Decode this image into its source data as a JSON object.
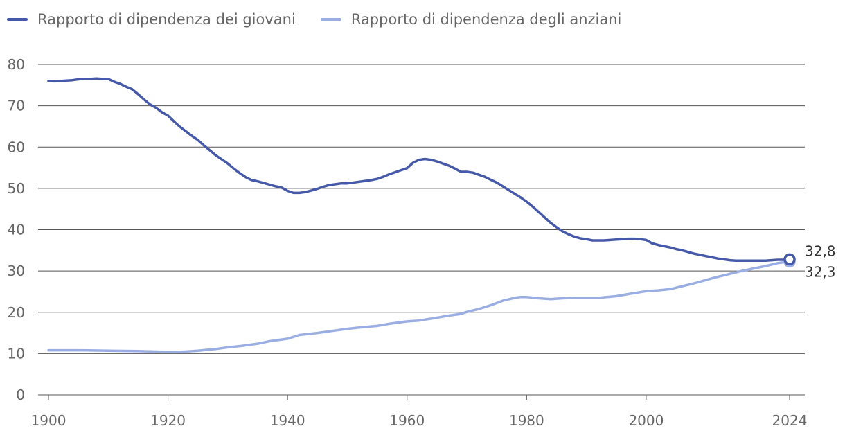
{
  "legend": {
    "young_label": "Rapporto di dipendenza dei giovani",
    "old_label": "Rapporto di dipendenza degli anziani"
  },
  "colors": {
    "young": "#4659a8",
    "old": "#9aaee3",
    "grid": "#555555",
    "axis_text": "#666666"
  },
  "chart_data": {
    "type": "line",
    "title": "",
    "xlabel": "",
    "ylabel": "",
    "xlim": [
      1900,
      2024
    ],
    "ylim": [
      0,
      80
    ],
    "x_ticks": [
      1900,
      1920,
      1940,
      1960,
      1980,
      2000,
      2024
    ],
    "y_ticks": [
      0,
      10,
      20,
      30,
      40,
      50,
      60,
      70,
      80
    ],
    "grid": true,
    "legend_position": "top-left",
    "series": [
      {
        "name": "Rapporto di dipendenza dei giovani",
        "color": "#4659a8",
        "points": [
          [
            1900,
            76.0
          ],
          [
            1901,
            75.9
          ],
          [
            1902,
            76.0
          ],
          [
            1903,
            76.1
          ],
          [
            1904,
            76.2
          ],
          [
            1905,
            76.4
          ],
          [
            1906,
            76.5
          ],
          [
            1907,
            76.5
          ],
          [
            1908,
            76.6
          ],
          [
            1909,
            76.5
          ],
          [
            1910,
            76.5
          ],
          [
            1911,
            75.8
          ],
          [
            1912,
            75.3
          ],
          [
            1913,
            74.6
          ],
          [
            1914,
            74.0
          ],
          [
            1915,
            72.8
          ],
          [
            1916,
            71.5
          ],
          [
            1917,
            70.3
          ],
          [
            1918,
            69.5
          ],
          [
            1919,
            68.4
          ],
          [
            1920,
            67.6
          ],
          [
            1921,
            66.2
          ],
          [
            1922,
            64.9
          ],
          [
            1923,
            63.8
          ],
          [
            1924,
            62.7
          ],
          [
            1925,
            61.7
          ],
          [
            1926,
            60.4
          ],
          [
            1927,
            59.2
          ],
          [
            1928,
            58.0
          ],
          [
            1929,
            57.0
          ],
          [
            1930,
            56.0
          ],
          [
            1931,
            54.8
          ],
          [
            1932,
            53.7
          ],
          [
            1933,
            52.7
          ],
          [
            1934,
            52.0
          ],
          [
            1935,
            51.7
          ],
          [
            1936,
            51.3
          ],
          [
            1937,
            50.9
          ],
          [
            1938,
            50.5
          ],
          [
            1939,
            50.2
          ],
          [
            1940,
            49.4
          ],
          [
            1941,
            48.9
          ],
          [
            1942,
            48.9
          ],
          [
            1943,
            49.1
          ],
          [
            1944,
            49.5
          ],
          [
            1945,
            49.9
          ],
          [
            1946,
            50.4
          ],
          [
            1947,
            50.8
          ],
          [
            1948,
            51.0
          ],
          [
            1949,
            51.2
          ],
          [
            1950,
            51.2
          ],
          [
            1951,
            51.4
          ],
          [
            1952,
            51.6
          ],
          [
            1953,
            51.8
          ],
          [
            1954,
            52.0
          ],
          [
            1955,
            52.3
          ],
          [
            1956,
            52.8
          ],
          [
            1957,
            53.4
          ],
          [
            1958,
            53.9
          ],
          [
            1959,
            54.4
          ],
          [
            1960,
            54.9
          ],
          [
            1961,
            56.2
          ],
          [
            1962,
            56.9
          ],
          [
            1963,
            57.1
          ],
          [
            1964,
            56.9
          ],
          [
            1965,
            56.5
          ],
          [
            1966,
            56.0
          ],
          [
            1967,
            55.5
          ],
          [
            1968,
            54.8
          ],
          [
            1969,
            54.0
          ],
          [
            1970,
            54.0
          ],
          [
            1971,
            53.8
          ],
          [
            1972,
            53.3
          ],
          [
            1973,
            52.8
          ],
          [
            1974,
            52.1
          ],
          [
            1975,
            51.4
          ],
          [
            1976,
            50.5
          ],
          [
            1977,
            49.6
          ],
          [
            1978,
            48.7
          ],
          [
            1979,
            47.8
          ],
          [
            1980,
            46.8
          ],
          [
            1981,
            45.6
          ],
          [
            1982,
            44.3
          ],
          [
            1983,
            43.0
          ],
          [
            1984,
            41.7
          ],
          [
            1985,
            40.6
          ],
          [
            1986,
            39.6
          ],
          [
            1987,
            38.9
          ],
          [
            1988,
            38.3
          ],
          [
            1989,
            37.9
          ],
          [
            1990,
            37.7
          ],
          [
            1991,
            37.4
          ],
          [
            1992,
            37.4
          ],
          [
            1993,
            37.4
          ],
          [
            1994,
            37.5
          ],
          [
            1995,
            37.6
          ],
          [
            1996,
            37.7
          ],
          [
            1997,
            37.8
          ],
          [
            1998,
            37.8
          ],
          [
            1999,
            37.7
          ],
          [
            2000,
            37.5
          ],
          [
            2001,
            36.7
          ],
          [
            2002,
            36.3
          ],
          [
            2003,
            36.0
          ],
          [
            2004,
            35.7
          ],
          [
            2005,
            35.3
          ],
          [
            2006,
            35.0
          ],
          [
            2007,
            34.6
          ],
          [
            2008,
            34.2
          ],
          [
            2009,
            33.9
          ],
          [
            2010,
            33.6
          ],
          [
            2011,
            33.3
          ],
          [
            2012,
            33.0
          ],
          [
            2013,
            32.8
          ],
          [
            2014,
            32.6
          ],
          [
            2015,
            32.5
          ],
          [
            2016,
            32.5
          ],
          [
            2017,
            32.5
          ],
          [
            2018,
            32.5
          ],
          [
            2019,
            32.5
          ],
          [
            2020,
            32.5
          ],
          [
            2021,
            32.6
          ],
          [
            2022,
            32.7
          ],
          [
            2023,
            32.7
          ],
          [
            2024,
            32.8
          ]
        ],
        "end_label": "32,8"
      },
      {
        "name": "Rapporto di dipendenza degli anziani",
        "color": "#9aaee3",
        "points": [
          [
            1900,
            10.8
          ],
          [
            1905,
            10.8
          ],
          [
            1910,
            10.7
          ],
          [
            1915,
            10.6
          ],
          [
            1920,
            10.4
          ],
          [
            1922,
            10.4
          ],
          [
            1925,
            10.7
          ],
          [
            1928,
            11.1
          ],
          [
            1930,
            11.5
          ],
          [
            1932,
            11.8
          ],
          [
            1935,
            12.4
          ],
          [
            1937,
            13.0
          ],
          [
            1940,
            13.6
          ],
          [
            1942,
            14.5
          ],
          [
            1945,
            15.0
          ],
          [
            1947,
            15.4
          ],
          [
            1950,
            16.0
          ],
          [
            1952,
            16.3
          ],
          [
            1955,
            16.7
          ],
          [
            1957,
            17.2
          ],
          [
            1960,
            17.8
          ],
          [
            1962,
            18.0
          ],
          [
            1965,
            18.7
          ],
          [
            1967,
            19.2
          ],
          [
            1969,
            19.6
          ],
          [
            1970,
            20.1
          ],
          [
            1972,
            20.8
          ],
          [
            1974,
            21.7
          ],
          [
            1976,
            22.8
          ],
          [
            1978,
            23.5
          ],
          [
            1979,
            23.7
          ],
          [
            1980,
            23.7
          ],
          [
            1982,
            23.4
          ],
          [
            1984,
            23.2
          ],
          [
            1986,
            23.4
          ],
          [
            1988,
            23.5
          ],
          [
            1990,
            23.5
          ],
          [
            1992,
            23.5
          ],
          [
            1995,
            23.9
          ],
          [
            1997,
            24.4
          ],
          [
            2000,
            25.1
          ],
          [
            2002,
            25.3
          ],
          [
            2004,
            25.6
          ],
          [
            2006,
            26.3
          ],
          [
            2008,
            27.0
          ],
          [
            2010,
            27.8
          ],
          [
            2012,
            28.6
          ],
          [
            2014,
            29.3
          ],
          [
            2016,
            30.0
          ],
          [
            2018,
            30.6
          ],
          [
            2020,
            31.2
          ],
          [
            2022,
            31.9
          ],
          [
            2023,
            32.1
          ],
          [
            2024,
            32.3
          ]
        ],
        "end_label": "32,3"
      }
    ]
  }
}
